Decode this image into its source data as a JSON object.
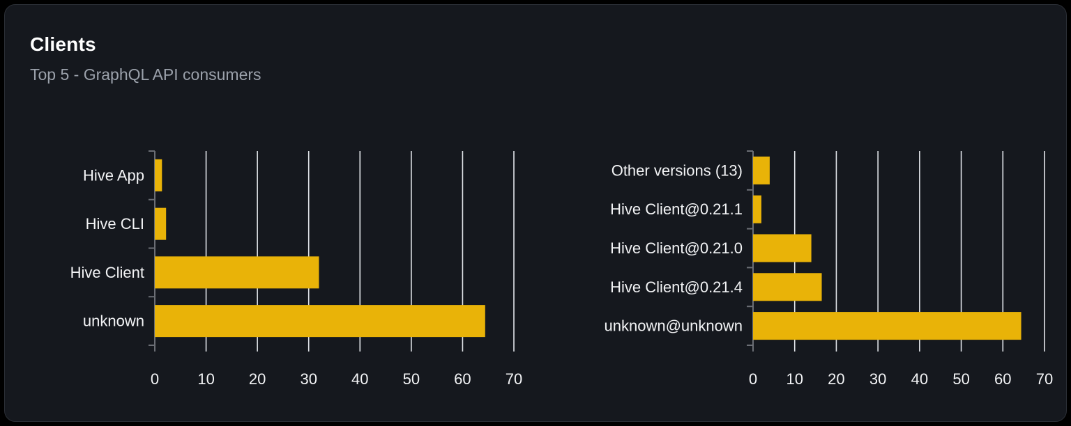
{
  "card": {
    "title": "Clients",
    "subtitle": "Top 5 - GraphQL API consumers"
  },
  "colors": {
    "page_bg": "#000000",
    "card_bg": "#15181e",
    "card_border": "#2b2f36",
    "title": "#ffffff",
    "subtitle": "#9ba1ab",
    "bar": "#e9b308",
    "grid_line": "#e3e6eb",
    "axis_line": "#6b6e75",
    "label": "#f3f4f6"
  },
  "chart_data": [
    {
      "type": "bar",
      "orientation": "horizontal",
      "name": "clients-by-name",
      "title": "",
      "categories": [
        "Hive App",
        "Hive CLI",
        "Hive Client",
        "unknown"
      ],
      "values": [
        1.4,
        2.2,
        32,
        64.4
      ],
      "xlim": [
        0,
        70
      ],
      "xticks": [
        0,
        10,
        20,
        30,
        40,
        50,
        60,
        70
      ],
      "grid": true,
      "legend": false,
      "bar_color": "#e9b308"
    },
    {
      "type": "bar",
      "orientation": "horizontal",
      "name": "clients-by-version",
      "title": "",
      "categories": [
        "Other versions (13)",
        "Hive Client@0.21.1",
        "Hive Client@0.21.0",
        "Hive Client@0.21.4",
        "unknown@unknown"
      ],
      "values": [
        4,
        2,
        14,
        16.5,
        64.4
      ],
      "xlim": [
        0,
        70
      ],
      "xticks": [
        0,
        10,
        20,
        30,
        40,
        50,
        60,
        70
      ],
      "grid": true,
      "legend": false,
      "bar_color": "#e9b308"
    }
  ]
}
